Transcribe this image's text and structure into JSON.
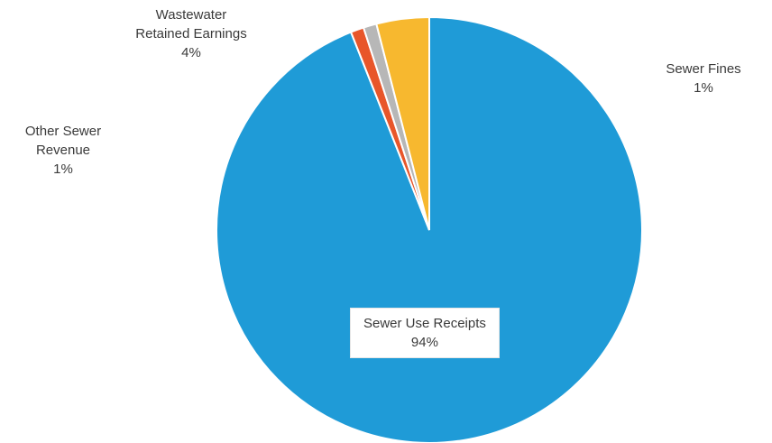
{
  "chart_data": {
    "type": "pie",
    "title": "",
    "slices": [
      {
        "label": "Sewer Use Receipts",
        "value": 94,
        "display": "94%",
        "color": "#1f9bd7"
      },
      {
        "label": "Other Sewer Revenue",
        "value": 1,
        "display": "1%",
        "color": "#e8562a"
      },
      {
        "label": "Sewer Fines",
        "value": 1,
        "display": "1%",
        "color": "#b7b7b7"
      },
      {
        "label": "Wastewater Retained Earnings",
        "value": 4,
        "display": "4%",
        "color": "#f7b82f"
      }
    ],
    "label_lines": {
      "wastewater": [
        "Wastewater",
        "Retained Earnings"
      ],
      "other": [
        "Other Sewer",
        "Revenue"
      ],
      "fines": [
        "Sewer Fines"
      ],
      "sewer_use": [
        "Sewer Use Receipts"
      ]
    },
    "legend": "none"
  }
}
